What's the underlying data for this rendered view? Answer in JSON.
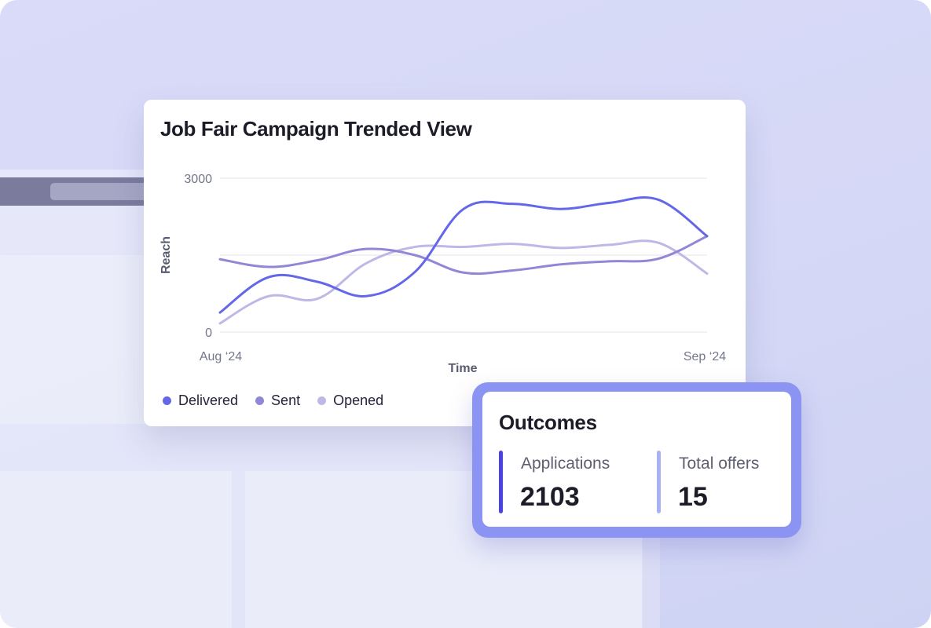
{
  "chart_card": {
    "title": "Job Fair Campaign Trended View"
  },
  "chart_data": {
    "type": "line",
    "title": "Job Fair Campaign Trended View",
    "xlabel": "Time",
    "ylabel": "Reach",
    "x_tick_labels": [
      "Aug ‘24",
      "Sep ‘24"
    ],
    "y_tick_labels": [
      "3000",
      "0"
    ],
    "ylim": [
      0,
      3000
    ],
    "grid": true,
    "legend_position": "bottom-left",
    "x": [
      0,
      1,
      2,
      3,
      4,
      5,
      6,
      7,
      8,
      9,
      10
    ],
    "series": [
      {
        "name": "Delivered",
        "color": "#6468e8",
        "values": [
          380,
          1070,
          980,
          700,
          1170,
          2400,
          2500,
          2400,
          2520,
          2580,
          1870
        ]
      },
      {
        "name": "Sent",
        "color": "#9088d6",
        "values": [
          1420,
          1270,
          1400,
          1620,
          1500,
          1160,
          1200,
          1320,
          1380,
          1430,
          1870
        ]
      },
      {
        "name": "Opened",
        "color": "#bfb8e6",
        "values": [
          170,
          700,
          650,
          1340,
          1660,
          1660,
          1720,
          1640,
          1700,
          1740,
          1140
        ]
      }
    ]
  },
  "outcomes": {
    "title": "Outcomes",
    "metrics": [
      {
        "label": "Applications",
        "value": "2103",
        "color": "#4a43e0"
      },
      {
        "label": "Total offers",
        "value": "15",
        "color": "#a9b0f3"
      }
    ]
  }
}
